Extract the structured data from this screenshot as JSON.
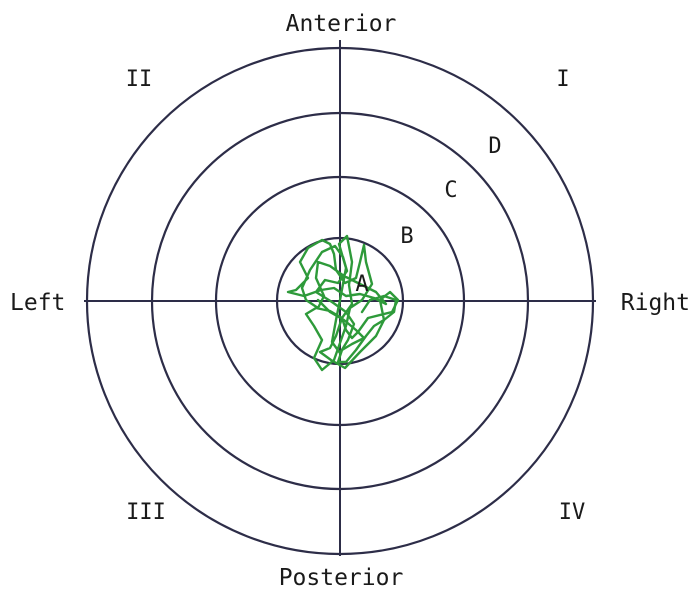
{
  "directions": {
    "anterior": "Anterior",
    "posterior": "Posterior",
    "left": "Left",
    "right": "Right"
  },
  "quadrants": {
    "q1": "I",
    "q2": "II",
    "q3": "III",
    "q4": "IV"
  },
  "zones": {
    "a": "A",
    "b": "B",
    "c": "C",
    "d": "D"
  },
  "colors": {
    "rings": "#2d2d48",
    "trace": "#2e9a3a",
    "text": "#1a1a1a"
  }
}
